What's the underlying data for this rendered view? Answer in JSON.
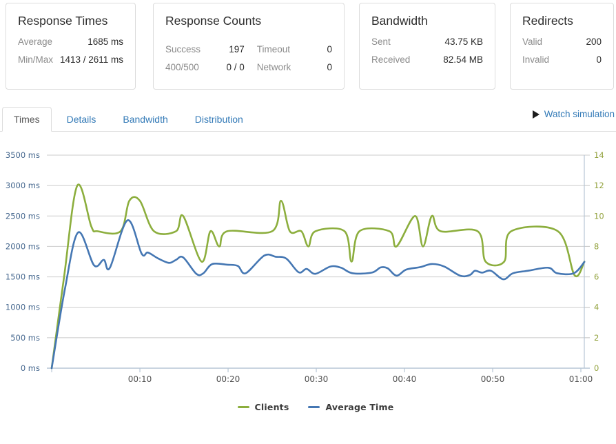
{
  "cards": {
    "response_times": {
      "title": "Response Times",
      "rows": [
        {
          "label": "Average",
          "value": "1685 ms"
        },
        {
          "label": "Min/Max",
          "value": "1413 / 2611 ms"
        }
      ]
    },
    "response_counts": {
      "title": "Response Counts",
      "left_rows": [
        {
          "label": "Success",
          "value": "197"
        },
        {
          "label": "400/500",
          "value": "0 / 0"
        }
      ],
      "right_rows": [
        {
          "label": "Timeout",
          "value": "0"
        },
        {
          "label": "Network",
          "value": "0"
        }
      ]
    },
    "bandwidth": {
      "title": "Bandwidth",
      "rows": [
        {
          "label": "Sent",
          "value": "43.75 KB"
        },
        {
          "label": "Received",
          "value": "82.54 MB"
        }
      ]
    },
    "redirects": {
      "title": "Redirects",
      "rows": [
        {
          "label": "Valid",
          "value": "200"
        },
        {
          "label": "Invalid",
          "value": "0"
        }
      ]
    }
  },
  "tabs": {
    "items": [
      {
        "label": "Times",
        "active": true
      },
      {
        "label": "Details",
        "active": false
      },
      {
        "label": "Bandwidth",
        "active": false
      },
      {
        "label": "Distribution",
        "active": false
      }
    ],
    "watch_label": "Watch simulation"
  },
  "chart_data": {
    "type": "line",
    "x_unit": "minutes",
    "x_start": -0.55,
    "x_end": 60.39,
    "grid": true,
    "legend_position": "bottom",
    "colors": {
      "grid": "#cbcbcb",
      "axis_line": "#b7c6d5",
      "x_label": "#4f4f4f"
    },
    "x_ticks": [
      {
        "t": 0,
        "label": ""
      },
      {
        "t": 10,
        "label": "00:10"
      },
      {
        "t": 20,
        "label": "00:20"
      },
      {
        "t": 30,
        "label": "00:30"
      },
      {
        "t": 40,
        "label": "00:40"
      },
      {
        "t": 50,
        "label": "00:50"
      },
      {
        "t": 60,
        "label": "01:00"
      }
    ],
    "left_axis": {
      "min": 0,
      "max": 3500,
      "color": "#45678e",
      "ticks": [
        {
          "v": 0,
          "label": "0 ms"
        },
        {
          "v": 500,
          "label": "500 ms"
        },
        {
          "v": 1000,
          "label": "1000 ms"
        },
        {
          "v": 1500,
          "label": "1500 ms"
        },
        {
          "v": 2000,
          "label": "2000 ms"
        },
        {
          "v": 2500,
          "label": "2500 ms"
        },
        {
          "v": 3000,
          "label": "3000 ms"
        },
        {
          "v": 3500,
          "label": "3500 ms"
        }
      ]
    },
    "right_axis": {
      "min": 0,
      "max": 14,
      "color": "#92a23d",
      "ticks": [
        {
          "v": 0,
          "label": "0"
        },
        {
          "v": 2,
          "label": "2"
        },
        {
          "v": 4,
          "label": "4"
        },
        {
          "v": 6,
          "label": "6"
        },
        {
          "v": 8,
          "label": "8"
        },
        {
          "v": 10,
          "label": "10"
        },
        {
          "v": 12,
          "label": "12"
        },
        {
          "v": 14,
          "label": "14"
        }
      ]
    },
    "series": [
      {
        "name": "Clients",
        "axis": "right",
        "color": "#8cae3d",
        "points": [
          [
            0,
            0
          ],
          [
            1.4,
            6
          ],
          [
            2.9,
            12
          ],
          [
            4.5,
            9.3
          ],
          [
            5.2,
            9
          ],
          [
            7.8,
            9
          ],
          [
            8.8,
            11
          ],
          [
            10,
            11
          ],
          [
            11.6,
            9
          ],
          [
            14.1,
            9
          ],
          [
            14.9,
            10
          ],
          [
            17,
            7
          ],
          [
            18,
            9
          ],
          [
            19,
            8
          ],
          [
            19.9,
            9
          ],
          [
            25,
            9
          ],
          [
            26,
            11
          ],
          [
            27,
            9
          ],
          [
            28.3,
            9
          ],
          [
            29.1,
            8
          ],
          [
            29.9,
            9
          ],
          [
            33.2,
            9
          ],
          [
            34,
            7
          ],
          [
            34.9,
            9
          ],
          [
            38.3,
            9
          ],
          [
            39.1,
            8
          ],
          [
            41.2,
            10
          ],
          [
            42.1,
            8
          ],
          [
            43.1,
            10
          ],
          [
            44.1,
            9
          ],
          [
            48.3,
            9
          ],
          [
            49.2,
            7
          ],
          [
            51.3,
            7
          ],
          [
            52.1,
            9
          ],
          [
            57.4,
            9
          ],
          [
            59.3,
            6.1
          ],
          [
            60.4,
            7
          ]
        ]
      },
      {
        "name": "Average Time",
        "axis": "left",
        "color": "#4577b3",
        "points": [
          [
            0,
            0
          ],
          [
            1.5,
            1300
          ],
          [
            3,
            2230
          ],
          [
            4.8,
            1690
          ],
          [
            5.9,
            1780
          ],
          [
            6.6,
            1650
          ],
          [
            8.6,
            2430
          ],
          [
            10.2,
            1880
          ],
          [
            10.9,
            1900
          ],
          [
            12.1,
            1800
          ],
          [
            13.3,
            1730
          ],
          [
            14.1,
            1780
          ],
          [
            14.9,
            1820
          ],
          [
            16.4,
            1550
          ],
          [
            17.2,
            1560
          ],
          [
            18.2,
            1710
          ],
          [
            19.9,
            1700
          ],
          [
            21.1,
            1680
          ],
          [
            22,
            1560
          ],
          [
            24.1,
            1850
          ],
          [
            25.4,
            1830
          ],
          [
            26.6,
            1800
          ],
          [
            28,
            1575
          ],
          [
            28.9,
            1630
          ],
          [
            29.9,
            1550
          ],
          [
            31.6,
            1670
          ],
          [
            32.8,
            1650
          ],
          [
            34.1,
            1560
          ],
          [
            36.3,
            1570
          ],
          [
            37.3,
            1655
          ],
          [
            38.1,
            1640
          ],
          [
            39.1,
            1520
          ],
          [
            40.2,
            1620
          ],
          [
            41.8,
            1660
          ],
          [
            43.1,
            1712
          ],
          [
            44.5,
            1670
          ],
          [
            46.3,
            1520
          ],
          [
            47.4,
            1530
          ],
          [
            48,
            1600
          ],
          [
            48.8,
            1570
          ],
          [
            49.8,
            1600
          ],
          [
            51.2,
            1460
          ],
          [
            52.3,
            1560
          ],
          [
            54,
            1600
          ],
          [
            56.3,
            1650
          ],
          [
            57.3,
            1560
          ],
          [
            59.2,
            1560
          ],
          [
            60.4,
            1745
          ]
        ]
      }
    ]
  }
}
